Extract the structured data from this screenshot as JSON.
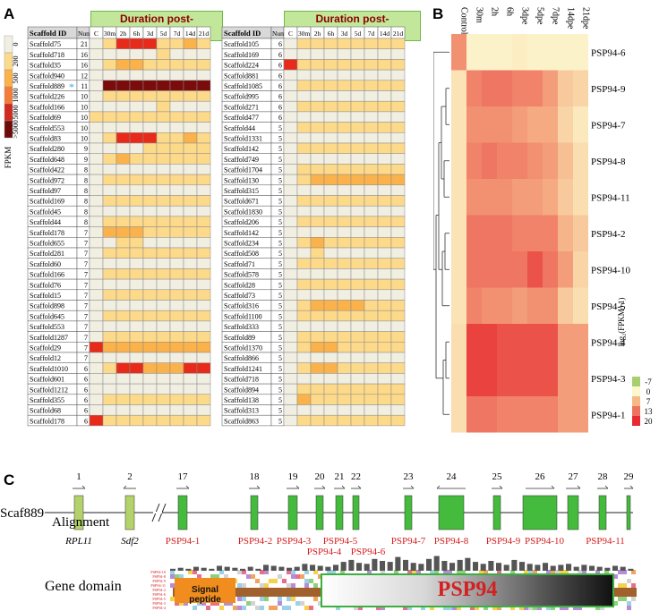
{
  "panels": {
    "a": "A",
    "b": "B",
    "c": "C"
  },
  "heatmap_a": {
    "header": "Duration post-evisceration",
    "col_scaffold": "Scaffold ID",
    "col_num": "Num",
    "time_labels": [
      "C",
      "30m",
      "2h",
      "6h",
      "3d",
      "5d",
      "7d",
      "14d",
      "21d"
    ],
    "legend_title": "FPKM",
    "legend_labels": [
      "0",
      "200",
      "500",
      "1000",
      "5000",
      ">5000"
    ],
    "legend_colors": [
      "#f1eee2",
      "#fdd98a",
      "#fbb24a",
      "#f47c38",
      "#d12a1e",
      "#6e0a0a"
    ],
    "marker": "*",
    "palette": [
      "#f1eee2",
      "#fdd98a",
      "#fbb24a",
      "#f47c38",
      "#d12a1e",
      "#e82a1a"
    ],
    "left_rows": [
      {
        "id": "Scaffold75",
        "num": "21",
        "v": [
          0,
          1,
          5,
          5,
          5,
          1,
          1,
          2,
          1
        ]
      },
      {
        "id": "Scaffold718",
        "num": "16",
        "v": [
          0,
          0,
          0,
          0,
          0,
          1,
          0,
          0,
          0
        ]
      },
      {
        "id": "Scaffold35",
        "num": "16",
        "v": [
          0,
          1,
          2,
          2,
          1,
          1,
          1,
          1,
          1
        ]
      },
      {
        "id": "Scaffold940",
        "num": "12",
        "v": [
          0,
          0,
          0,
          0,
          0,
          0,
          0,
          0,
          0
        ]
      },
      {
        "id": "Scaffold889",
        "num": "11",
        "v": [
          0,
          4,
          4,
          4,
          4,
          4,
          4,
          4,
          4
        ]
      },
      {
        "id": "Scaffold226",
        "num": "10",
        "v": [
          0,
          1,
          1,
          1,
          1,
          1,
          1,
          1,
          1
        ]
      },
      {
        "id": "Scaffold166",
        "num": "10",
        "v": [
          0,
          0,
          0,
          0,
          0,
          1,
          0,
          0,
          0
        ]
      },
      {
        "id": "Scaffold69",
        "num": "10",
        "v": [
          1,
          1,
          1,
          1,
          1,
          1,
          1,
          1,
          1
        ]
      },
      {
        "id": "Scaffold553",
        "num": "10",
        "v": [
          0,
          0,
          0,
          0,
          0,
          0,
          0,
          0,
          0
        ]
      },
      {
        "id": "Scaffold83",
        "num": "10",
        "v": [
          0,
          1,
          5,
          5,
          5,
          1,
          1,
          2,
          1
        ]
      },
      {
        "id": "Scaffold280",
        "num": "9",
        "v": [
          0,
          0,
          0,
          0,
          1,
          1,
          1,
          1,
          1
        ]
      },
      {
        "id": "Scaffold648",
        "num": "9",
        "v": [
          0,
          1,
          2,
          1,
          1,
          1,
          1,
          1,
          1
        ]
      },
      {
        "id": "Scaffold422",
        "num": "8",
        "v": [
          0,
          0,
          0,
          0,
          0,
          0,
          0,
          0,
          0
        ]
      },
      {
        "id": "Scaffold972",
        "num": "8",
        "v": [
          0,
          1,
          1,
          1,
          1,
          1,
          1,
          1,
          1
        ]
      },
      {
        "id": "Scaffold97",
        "num": "8",
        "v": [
          0,
          0,
          0,
          0,
          0,
          0,
          0,
          0,
          0
        ]
      },
      {
        "id": "Scaffold169",
        "num": "8",
        "v": [
          0,
          1,
          1,
          1,
          1,
          1,
          1,
          1,
          1
        ]
      },
      {
        "id": "Scaffold45",
        "num": "8",
        "v": [
          0,
          0,
          0,
          0,
          0,
          0,
          0,
          0,
          0
        ]
      },
      {
        "id": "Scaffold44",
        "num": "8",
        "v": [
          0,
          1,
          1,
          1,
          1,
          1,
          1,
          1,
          1
        ]
      },
      {
        "id": "Scaffold178",
        "num": "7",
        "v": [
          0,
          2,
          2,
          2,
          1,
          1,
          1,
          1,
          1
        ]
      },
      {
        "id": "Scaffold655",
        "num": "7",
        "v": [
          0,
          0,
          1,
          1,
          0,
          0,
          0,
          0,
          0
        ]
      },
      {
        "id": "Scaffold281",
        "num": "7",
        "v": [
          0,
          1,
          1,
          1,
          1,
          1,
          1,
          1,
          1
        ]
      },
      {
        "id": "Scaffold60",
        "num": "7",
        "v": [
          0,
          0,
          0,
          0,
          0,
          0,
          0,
          0,
          0
        ]
      },
      {
        "id": "Scaffold166",
        "num": "7",
        "v": [
          0,
          1,
          1,
          1,
          1,
          1,
          1,
          1,
          1
        ]
      },
      {
        "id": "Scaffold76",
        "num": "7",
        "v": [
          0,
          0,
          0,
          0,
          0,
          0,
          0,
          0,
          0
        ]
      },
      {
        "id": "Scaffold15",
        "num": "7",
        "v": [
          0,
          1,
          1,
          1,
          1,
          1,
          1,
          1,
          1
        ]
      },
      {
        "id": "Scaffold898",
        "num": "7",
        "v": [
          0,
          0,
          0,
          0,
          0,
          0,
          0,
          0,
          0
        ]
      },
      {
        "id": "Scaffold645",
        "num": "7",
        "v": [
          0,
          1,
          1,
          1,
          1,
          1,
          1,
          1,
          1
        ]
      },
      {
        "id": "Scaffold553",
        "num": "7",
        "v": [
          0,
          0,
          0,
          0,
          0,
          0,
          0,
          0,
          0
        ]
      },
      {
        "id": "Scaffold1287",
        "num": "7",
        "v": [
          0,
          1,
          1,
          1,
          1,
          1,
          1,
          1,
          1
        ]
      },
      {
        "id": "Scaffold29",
        "num": "7",
        "v": [
          5,
          2,
          2,
          2,
          2,
          2,
          2,
          2,
          2
        ]
      },
      {
        "id": "Scaffold12",
        "num": "7",
        "v": [
          0,
          0,
          0,
          0,
          0,
          0,
          0,
          0,
          0
        ]
      },
      {
        "id": "Scaffold1010",
        "num": "6",
        "v": [
          0,
          1,
          5,
          5,
          2,
          2,
          2,
          5,
          5
        ]
      },
      {
        "id": "Scaffold601",
        "num": "6",
        "v": [
          0,
          0,
          0,
          0,
          0,
          0,
          0,
          0,
          0
        ]
      },
      {
        "id": "Scaffold1212",
        "num": "6",
        "v": [
          0,
          0,
          0,
          0,
          0,
          0,
          0,
          0,
          0
        ]
      },
      {
        "id": "Scaffold355",
        "num": "6",
        "v": [
          0,
          1,
          1,
          1,
          1,
          1,
          1,
          1,
          1
        ]
      },
      {
        "id": "Scaffold68",
        "num": "6",
        "v": [
          0,
          0,
          0,
          0,
          0,
          0,
          0,
          0,
          0
        ]
      },
      {
        "id": "Scaffold178",
        "num": "6",
        "v": [
          5,
          1,
          1,
          1,
          1,
          1,
          1,
          1,
          1
        ]
      }
    ],
    "right_rows": [
      {
        "id": "Scaffold105",
        "num": "6",
        "v": [
          0,
          1,
          1,
          1,
          1,
          1,
          1,
          1,
          1
        ]
      },
      {
        "id": "Scaffold169",
        "num": "6",
        "v": [
          0,
          0,
          0,
          0,
          0,
          0,
          0,
          0,
          0
        ]
      },
      {
        "id": "Scaffold224",
        "num": "6",
        "v": [
          5,
          1,
          1,
          1,
          1,
          1,
          1,
          1,
          1
        ]
      },
      {
        "id": "Scaffold881",
        "num": "6",
        "v": [
          0,
          0,
          0,
          0,
          0,
          0,
          0,
          0,
          0
        ]
      },
      {
        "id": "Scaffold1085",
        "num": "6",
        "v": [
          0,
          1,
          1,
          1,
          1,
          1,
          1,
          1,
          1
        ]
      },
      {
        "id": "Scaffold995",
        "num": "6",
        "v": [
          0,
          0,
          0,
          0,
          0,
          0,
          0,
          0,
          0
        ]
      },
      {
        "id": "Scaffold271",
        "num": "6",
        "v": [
          0,
          1,
          1,
          1,
          1,
          1,
          1,
          1,
          1
        ]
      },
      {
        "id": "Scaffold477",
        "num": "6",
        "v": [
          0,
          0,
          0,
          0,
          0,
          0,
          0,
          0,
          0
        ]
      },
      {
        "id": "Scaffold44",
        "num": "5",
        "v": [
          0,
          1,
          1,
          1,
          1,
          1,
          1,
          1,
          1
        ]
      },
      {
        "id": "Scaffold1331",
        "num": "5",
        "v": [
          0,
          0,
          0,
          0,
          0,
          0,
          0,
          0,
          0
        ]
      },
      {
        "id": "Scaffold142",
        "num": "5",
        "v": [
          0,
          1,
          1,
          1,
          1,
          1,
          1,
          1,
          1
        ]
      },
      {
        "id": "Scaffold749",
        "num": "5",
        "v": [
          0,
          0,
          0,
          0,
          0,
          0,
          0,
          0,
          0
        ]
      },
      {
        "id": "Scaffold1704",
        "num": "5",
        "v": [
          0,
          1,
          1,
          1,
          1,
          1,
          1,
          1,
          1
        ]
      },
      {
        "id": "Scaffold130",
        "num": "5",
        "v": [
          0,
          1,
          2,
          2,
          2,
          2,
          2,
          2,
          2
        ]
      },
      {
        "id": "Scaffold315",
        "num": "5",
        "v": [
          0,
          0,
          0,
          0,
          0,
          0,
          0,
          0,
          0
        ]
      },
      {
        "id": "Scaffold671",
        "num": "5",
        "v": [
          0,
          1,
          1,
          1,
          1,
          1,
          1,
          1,
          1
        ]
      },
      {
        "id": "Scaffold1830",
        "num": "5",
        "v": [
          0,
          0,
          0,
          0,
          0,
          0,
          0,
          0,
          0
        ]
      },
      {
        "id": "Scaffold206",
        "num": "5",
        "v": [
          0,
          1,
          1,
          1,
          1,
          1,
          1,
          1,
          1
        ]
      },
      {
        "id": "Scaffold142",
        "num": "5",
        "v": [
          0,
          0,
          0,
          0,
          0,
          0,
          0,
          0,
          0
        ]
      },
      {
        "id": "Scaffold234",
        "num": "5",
        "v": [
          0,
          1,
          2,
          1,
          1,
          1,
          1,
          1,
          1
        ]
      },
      {
        "id": "Scaffold508",
        "num": "5",
        "v": [
          0,
          0,
          1,
          0,
          0,
          0,
          0,
          0,
          0
        ]
      },
      {
        "id": "Scaffold71",
        "num": "5",
        "v": [
          0,
          1,
          1,
          1,
          1,
          1,
          1,
          1,
          1
        ]
      },
      {
        "id": "Scaffold578",
        "num": "5",
        "v": [
          0,
          0,
          0,
          0,
          0,
          0,
          0,
          0,
          0
        ]
      },
      {
        "id": "Scaffold28",
        "num": "5",
        "v": [
          0,
          1,
          1,
          1,
          1,
          1,
          1,
          1,
          1
        ]
      },
      {
        "id": "Scaffold73",
        "num": "5",
        "v": [
          0,
          0,
          0,
          0,
          0,
          0,
          0,
          0,
          0
        ]
      },
      {
        "id": "Scaffold316",
        "num": "5",
        "v": [
          0,
          1,
          2,
          2,
          2,
          2,
          1,
          1,
          1
        ]
      },
      {
        "id": "Scaffold1100",
        "num": "5",
        "v": [
          0,
          1,
          1,
          1,
          1,
          1,
          1,
          1,
          1
        ]
      },
      {
        "id": "Scaffold333",
        "num": "5",
        "v": [
          0,
          0,
          0,
          0,
          0,
          0,
          0,
          0,
          0
        ]
      },
      {
        "id": "Scaffold89",
        "num": "5",
        "v": [
          0,
          1,
          1,
          1,
          1,
          1,
          1,
          1,
          1
        ]
      },
      {
        "id": "Scaffold1370",
        "num": "5",
        "v": [
          0,
          1,
          2,
          2,
          1,
          1,
          1,
          1,
          1
        ]
      },
      {
        "id": "Scaffold866",
        "num": "5",
        "v": [
          0,
          0,
          0,
          0,
          0,
          0,
          0,
          0,
          0
        ]
      },
      {
        "id": "Scaffold1241",
        "num": "5",
        "v": [
          0,
          1,
          2,
          2,
          1,
          1,
          1,
          1,
          1
        ]
      },
      {
        "id": "Scaffold718",
        "num": "5",
        "v": [
          0,
          0,
          0,
          0,
          0,
          0,
          0,
          0,
          0
        ]
      },
      {
        "id": "Scaffold894",
        "num": "5",
        "v": [
          0,
          1,
          1,
          1,
          1,
          1,
          1,
          1,
          1
        ]
      },
      {
        "id": "Scaffold138",
        "num": "5",
        "v": [
          0,
          2,
          1,
          1,
          1,
          1,
          1,
          1,
          1
        ]
      },
      {
        "id": "Scaffold313",
        "num": "5",
        "v": [
          0,
          0,
          0,
          0,
          0,
          0,
          0,
          0,
          0
        ]
      },
      {
        "id": "Scaffold863",
        "num": "5",
        "v": [
          0,
          1,
          1,
          1,
          1,
          1,
          1,
          1,
          1
        ]
      }
    ]
  },
  "heatmap_b": {
    "col_labels": [
      "Control",
      "30m",
      "2h",
      "6h",
      "3dpe",
      "5dpe",
      "7dpe",
      "14dpe",
      "21dpe"
    ],
    "row_labels": [
      "PSP94-6",
      "PSP94-9",
      "PSP94-7",
      "PSP94-8",
      "PSP94-11",
      "PSP94-2",
      "PSP94-10",
      "PSP94-5",
      "PSP94-4",
      "PSP94-3",
      "PSP94-1"
    ],
    "legend_title": "log₂(FPKM+1)",
    "legend_labels": [
      "-7",
      "0",
      "7",
      "13",
      "20"
    ],
    "legend_colors": [
      "#a8cf6e",
      "#fdf7cf",
      "#f6b886",
      "#ee7261",
      "#e82a32"
    ],
    "values": [
      [
        12,
        1,
        1,
        1,
        2,
        1,
        1,
        1,
        1
      ],
      [
        4,
        13,
        14,
        14,
        13,
        13,
        11,
        7,
        6
      ],
      [
        4,
        12,
        12,
        12,
        11,
        10,
        10,
        6,
        3
      ],
      [
        4,
        13,
        14,
        13,
        13,
        12,
        11,
        8,
        5
      ],
      [
        4,
        12,
        12,
        12,
        11,
        11,
        10,
        7,
        5
      ],
      [
        4,
        14,
        14,
        14,
        13,
        13,
        13,
        9,
        7
      ],
      [
        4,
        14,
        14,
        14,
        14,
        16,
        14,
        11,
        6
      ],
      [
        4,
        13,
        12,
        12,
        11,
        12,
        12,
        7,
        5
      ],
      [
        5,
        17,
        17,
        16,
        16,
        16,
        16,
        11,
        11
      ],
      [
        5,
        17,
        17,
        16,
        16,
        16,
        16,
        11,
        11
      ],
      [
        5,
        14,
        14,
        13,
        13,
        13,
        13,
        11,
        11
      ]
    ]
  },
  "gene_model": {
    "scaffold": "Scaf889",
    "exon_numbers": [
      "1",
      "2",
      "17",
      "18",
      "19",
      "20",
      "21",
      "22",
      "23",
      "24",
      "25",
      "26",
      "27",
      "28",
      "29"
    ],
    "gene_names": [
      "RPL11",
      "Sdf2",
      "PSP94-1",
      "PSP94-2",
      "PSP94-3",
      "PSP94-4",
      "PSP94-5",
      "PSP94-6",
      "PSP94-7",
      "PSP94-8",
      "PSP94-9",
      "PSP94-10",
      "PSP94-11"
    ],
    "colors": {
      "left_genes": "#b3d36a",
      "psp": "#44bb3c",
      "label_red": "#d42020"
    }
  },
  "alignment": {
    "title": "Alignment",
    "seq_labels": [
      "PSP94-10",
      "PSP94-8",
      "PSP94-9",
      "PSP94-11",
      "PSP94-2",
      "PSP94-6",
      "PSP94-5",
      "PSP94-3",
      "PSP94-4"
    ],
    "conservation": [
      0.1,
      0.15,
      0.1,
      0.2,
      0.15,
      0.1,
      0.25,
      0.2,
      0.15,
      0.1,
      0.2,
      0.1,
      0.3,
      0.25,
      0.2,
      0.15,
      0.2,
      0.35,
      0.3,
      0.25,
      0.2,
      0.3,
      0.45,
      0.55,
      0.4,
      0.35,
      0.6,
      0.5,
      0.45,
      0.7,
      0.55,
      0.4,
      0.35,
      0.6,
      0.75,
      0.5,
      0.4,
      0.55,
      0.65,
      0.45,
      0.35,
      0.5,
      0.4,
      0.3,
      0.55,
      0.45,
      0.35,
      0.3,
      0.4,
      0.25,
      0.3,
      0.35,
      0.2,
      0.3,
      0.25,
      0.2,
      0.15,
      0.25,
      0.2,
      0.1
    ]
  },
  "gene_domain": {
    "title": "Gene domain",
    "signal_label": "Signal peptide",
    "domain_label": "PSP94",
    "colors": {
      "bar": "#a0612c",
      "signal": "#f18c1e",
      "domain_border": "#3ab03e",
      "domain_text": "#d42020"
    }
  }
}
